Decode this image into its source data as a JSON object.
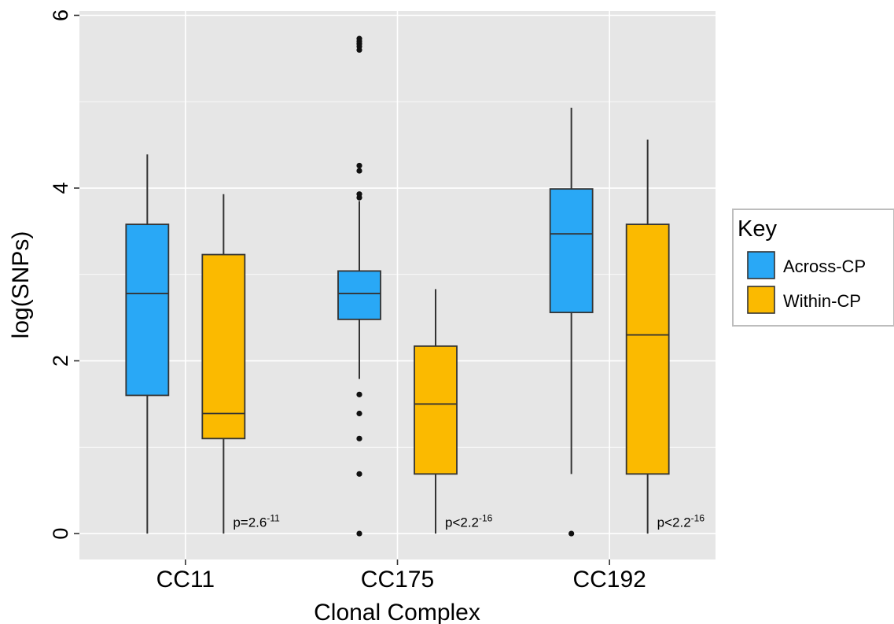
{
  "chart_data": {
    "type": "box",
    "title": "",
    "xlabel": "Clonal Complex",
    "ylabel": "log(SNPs)",
    "ylim": [
      -0.3,
      6.05
    ],
    "yticks": [
      0,
      2,
      4,
      6
    ],
    "yticks_labels": [
      "0",
      "2",
      "4",
      "6"
    ],
    "grid": true,
    "categories": [
      "CC11",
      "CC175",
      "CC192"
    ],
    "legend": {
      "title": "Key",
      "position": "right",
      "entries": [
        {
          "name": "Across-CP",
          "color": "#29a8f6"
        },
        {
          "name": "Within-CP",
          "color": "#fbba00"
        }
      ]
    },
    "series": [
      {
        "name": "Across-CP",
        "color": "#29a8f6",
        "boxes": [
          {
            "category": "CC11",
            "min": 0.0,
            "q1": 1.6,
            "median": 2.78,
            "q3": 3.58,
            "max": 4.39,
            "outliers": []
          },
          {
            "category": "CC175",
            "min": 1.79,
            "q1": 2.48,
            "median": 2.78,
            "q3": 3.04,
            "max": 3.85,
            "outliers": [
              0.0,
              0.69,
              1.1,
              1.39,
              1.61,
              3.89,
              3.93,
              4.2,
              4.26,
              5.6,
              5.64,
              5.67,
              5.7,
              5.73
            ]
          },
          {
            "category": "CC192",
            "min": 0.69,
            "q1": 2.56,
            "median": 3.47,
            "q3": 3.99,
            "max": 4.93,
            "outliers": [
              0.0
            ]
          }
        ]
      },
      {
        "name": "Within-CP",
        "color": "#fbba00",
        "boxes": [
          {
            "category": "CC11",
            "min": 0.0,
            "q1": 1.1,
            "median": 1.39,
            "q3": 3.23,
            "max": 3.93,
            "outliers": []
          },
          {
            "category": "CC175",
            "min": 0.0,
            "q1": 0.69,
            "median": 1.5,
            "q3": 2.17,
            "max": 2.83,
            "outliers": []
          },
          {
            "category": "CC192",
            "min": 0.0,
            "q1": 0.69,
            "median": 2.3,
            "q3": 3.58,
            "max": 4.56,
            "outliers": []
          }
        ]
      }
    ],
    "annotations": [
      {
        "category": "CC11",
        "base": "p=2.6",
        "exp": "-11",
        "y": 0.04
      },
      {
        "category": "CC175",
        "base": "p<2.2",
        "exp": "-16",
        "y": 0.04
      },
      {
        "category": "CC192",
        "base": "p<2.2",
        "exp": "-16",
        "y": 0.04
      }
    ]
  }
}
